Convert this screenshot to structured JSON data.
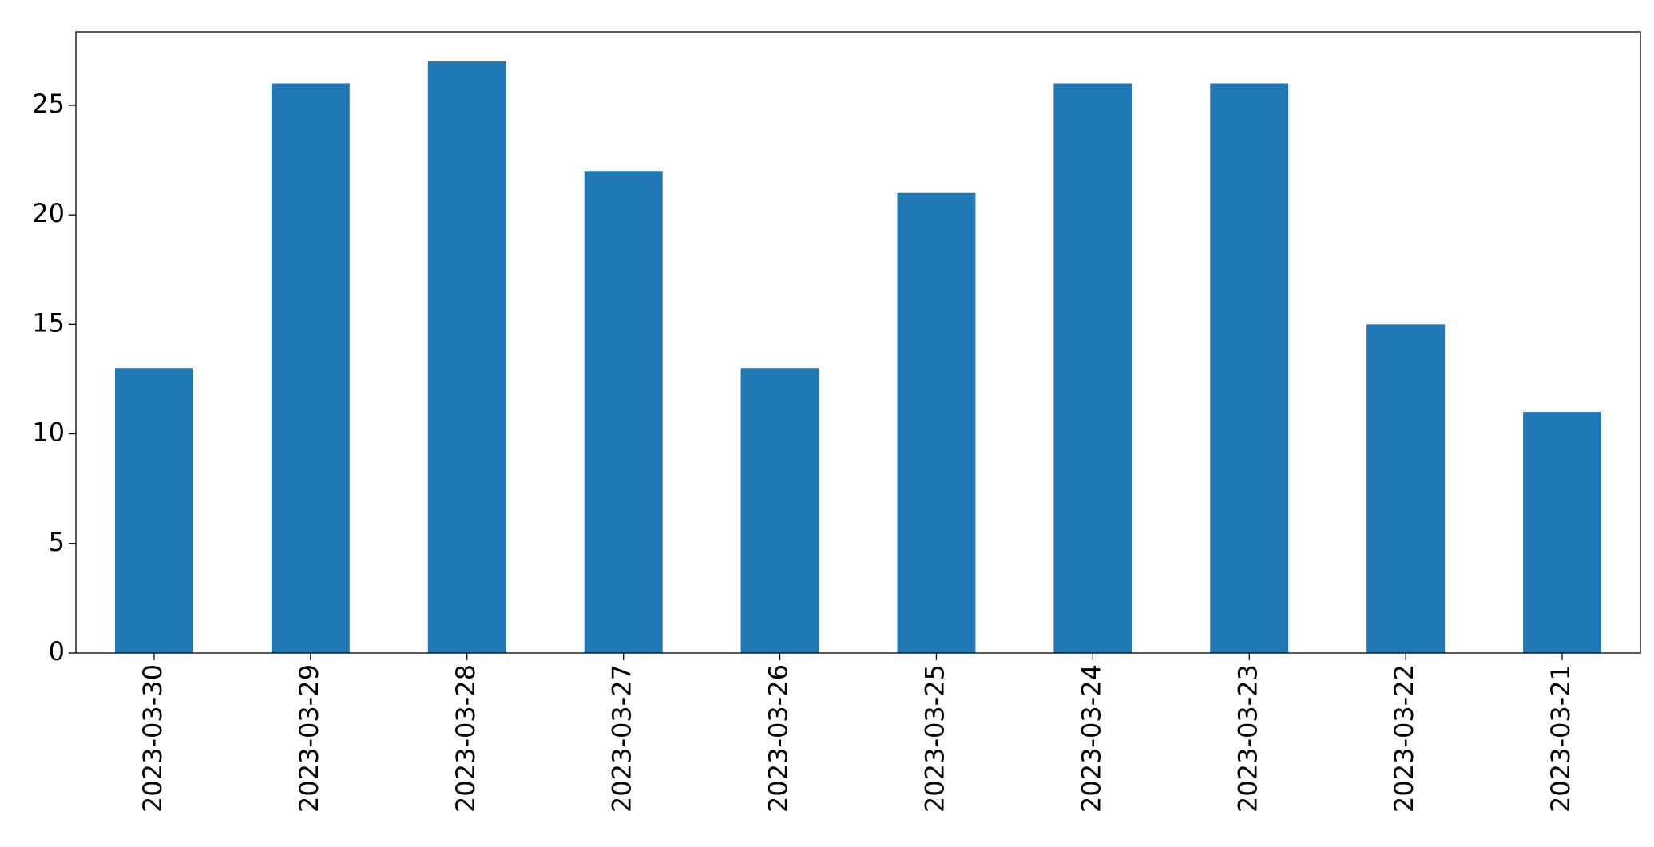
{
  "chart_data": {
    "type": "bar",
    "categories": [
      "2023-03-30",
      "2023-03-29",
      "2023-03-28",
      "2023-03-27",
      "2023-03-26",
      "2023-03-25",
      "2023-03-24",
      "2023-03-23",
      "2023-03-22",
      "2023-03-21"
    ],
    "values": [
      13,
      26,
      27,
      22,
      13,
      21,
      26,
      26,
      15,
      11
    ],
    "color": "#1f77b4",
    "ylim": [
      0,
      28.35
    ],
    "yticks": [
      0,
      5,
      10,
      15,
      20,
      25
    ],
    "grid": false
  }
}
